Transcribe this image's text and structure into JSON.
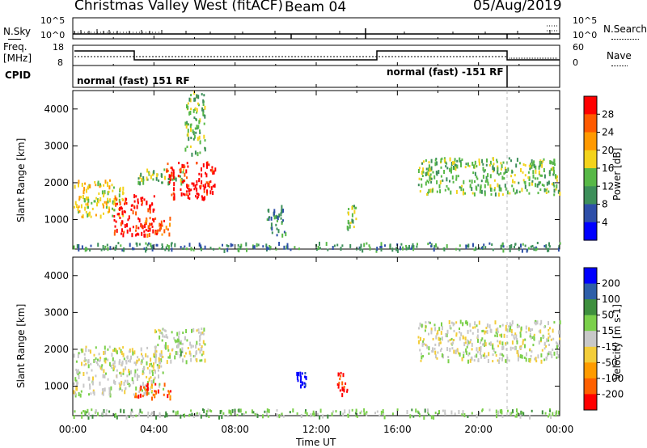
{
  "header": {
    "site": "Christmas Valley West (fitACF)",
    "beam": "Beam 04",
    "date": "05/Aug/2019"
  },
  "noise_panel": {
    "left_label": "N.Sky",
    "right_label": "N.Search",
    "ticks": [
      "10^5",
      "10^0"
    ]
  },
  "freq_panel": {
    "left_label_1": "Freq.",
    "left_label_2": "[MHz]",
    "left_ticks": [
      "18",
      "8"
    ],
    "right_label": "Nave",
    "right_ticks": [
      "60",
      "0"
    ]
  },
  "cpid_panel": {
    "label": "CPID",
    "program_1": "normal (fast) 151 RF",
    "program_2": "normal (fast) -151 RF"
  },
  "x_axis": {
    "label": "Time UT",
    "ticks": [
      "00:00",
      "04:00",
      "08:00",
      "12:00",
      "16:00",
      "20:00",
      "00:00"
    ]
  },
  "colors": {
    "power_scale": [
      "#0000ff",
      "#2e4fa8",
      "#3d8f5a",
      "#57b847",
      "#f3d31c",
      "#ff9900",
      "#ff5a00",
      "#ff0000"
    ],
    "velocity_scale": [
      "#ff0000",
      "#ff6000",
      "#ff9b00",
      "#f3cd3a",
      "#c8c8c8",
      "#7bd04b",
      "#3e8f3e",
      "#2e5fa8",
      "#0000ff"
    ]
  },
  "chart_data": [
    {
      "type": "heatmap",
      "name": "Power",
      "ylabel": "Slant Range [km]",
      "yticks": [
        1000,
        2000,
        3000,
        4000
      ],
      "ylim": [
        200,
        4500
      ],
      "xlim_hours": [
        0,
        24
      ],
      "colorbar_label": "Power [dB]",
      "colorbar_ticks": [
        "28",
        "24",
        "20",
        "16",
        "12",
        "8",
        "4"
      ],
      "regions": [
        {
          "t0": 0.0,
          "t1": 2.5,
          "r0": 1100,
          "r1": 2100,
          "level": 4
        },
        {
          "t0": 2.0,
          "t1": 4.0,
          "r0": 600,
          "r1": 1700,
          "level": 7
        },
        {
          "t0": 3.5,
          "t1": 4.8,
          "r0": 600,
          "r1": 1100,
          "level": 6
        },
        {
          "t0": 3.0,
          "t1": 5.5,
          "r0": 2000,
          "r1": 2400,
          "level": 3
        },
        {
          "t0": 4.5,
          "t1": 7.0,
          "r0": 1600,
          "r1": 2600,
          "level": 7
        },
        {
          "t0": 5.5,
          "t1": 6.5,
          "r0": 2800,
          "r1": 4500,
          "level": 3
        },
        {
          "t0": 9.5,
          "t1": 10.5,
          "r0": 600,
          "r1": 1400,
          "level": 2
        },
        {
          "t0": 13.5,
          "t1": 14.0,
          "r0": 800,
          "r1": 1400,
          "level": 3
        },
        {
          "t0": 17.0,
          "t1": 24.0,
          "r0": 1700,
          "r1": 2700,
          "level": 3
        },
        {
          "t0": 0.0,
          "t1": 24.0,
          "r0": 200,
          "r1": 400,
          "level": 2
        }
      ]
    },
    {
      "type": "heatmap",
      "name": "Velocity",
      "ylabel": "Slant Range [km]",
      "yticks": [
        1000,
        2000,
        3000,
        4000
      ],
      "ylim": [
        200,
        4500
      ],
      "xlim_hours": [
        0,
        24
      ],
      "colorbar_label": "Velocity [m s-1]",
      "colorbar_ticks": [
        "200",
        "100",
        "50",
        "15",
        "-15",
        "-50",
        "-100",
        "-200"
      ],
      "regions": [
        {
          "t0": 0.0,
          "t1": 4.5,
          "r0": 800,
          "r1": 2100,
          "level": 4
        },
        {
          "t0": 3.0,
          "t1": 4.8,
          "r0": 700,
          "r1": 1100,
          "level": 1
        },
        {
          "t0": 4.0,
          "t1": 6.5,
          "r0": 1700,
          "r1": 2600,
          "level": 4
        },
        {
          "t0": 5.0,
          "t1": 5.5,
          "r0": 1900,
          "r1": 2300,
          "level": 5
        },
        {
          "t0": 11.0,
          "t1": 11.5,
          "r0": 1000,
          "r1": 1400,
          "level": 8
        },
        {
          "t0": 13.0,
          "t1": 13.5,
          "r0": 800,
          "r1": 1400,
          "level": 0
        },
        {
          "t0": 17.0,
          "t1": 24.0,
          "r0": 1700,
          "r1": 2800,
          "level": 4
        },
        {
          "t0": 0.0,
          "t1": 24.0,
          "r0": 200,
          "r1": 400,
          "level": 5
        }
      ]
    }
  ]
}
